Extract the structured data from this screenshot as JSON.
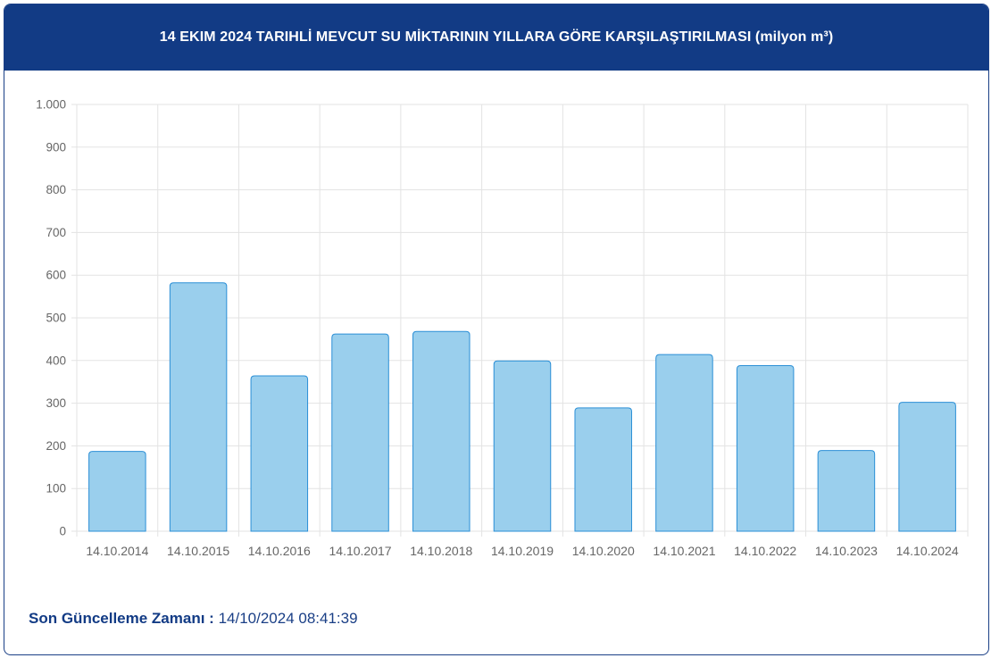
{
  "header": {
    "title": "14 EKIM 2024 TARIHLİ MEVCUT SU MİKTARININ YILLARA GÖRE KARŞILAŞTIRILMASI (milyon m³)"
  },
  "footer": {
    "label": "Son Güncelleme Zamanı :",
    "value": "14/10/2024 08:41:39"
  },
  "colors": {
    "header_bg": "#123b85",
    "bar_fill": "#9acfed",
    "bar_stroke": "#2b8fd6",
    "grid": "#e3e3e3",
    "axis_text": "#666666"
  },
  "chart_data": {
    "type": "bar",
    "categories": [
      "14.10.2014",
      "14.10.2015",
      "14.10.2016",
      "14.10.2017",
      "14.10.2018",
      "14.10.2019",
      "14.10.2020",
      "14.10.2021",
      "14.10.2022",
      "14.10.2023",
      "14.10.2024"
    ],
    "values": [
      187,
      582,
      364,
      462,
      468,
      399,
      289,
      414,
      388,
      189,
      302
    ],
    "ylim": [
      0,
      1000
    ],
    "yticks": [
      0,
      100,
      200,
      300,
      400,
      500,
      600,
      700,
      800,
      900,
      1000
    ],
    "ytick_labels": [
      "0",
      "100",
      "200",
      "300",
      "400",
      "500",
      "600",
      "700",
      "800",
      "900",
      "1.000"
    ],
    "grid": true,
    "legend": "none"
  }
}
